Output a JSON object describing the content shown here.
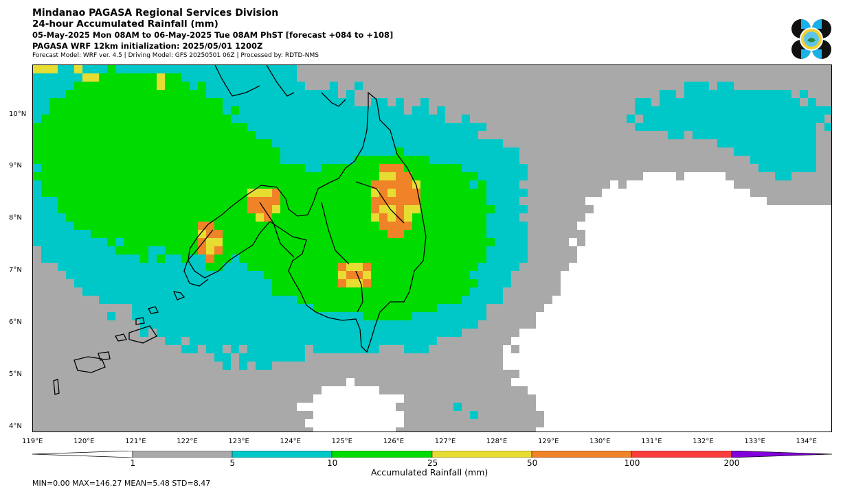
{
  "header": {
    "title": "Mindanao PAGASA Regional Services Division",
    "subtitle": "24-hour Accumulated Rainfall (mm)",
    "period": "05-May-2025 Mon 08AM to 06-May-2025 Tue 08AM PhST [forecast +084 to +108]",
    "model_init": "PAGASA WRF 12km initialization: 2025/05/01 1200Z",
    "model_info": "Forecast Model: WRF ver. 4.5 | Driving Model: GFS 20250501 06Z | Processed by: RDTD-NMS"
  },
  "map": {
    "lat_labels": [
      "10°N",
      "9°N",
      "8°N",
      "7°N",
      "6°N",
      "5°N",
      "4°N"
    ],
    "lon_labels": [
      "119°E",
      "120°E",
      "121°E",
      "122°E",
      "123°E",
      "124°E",
      "125°E",
      "126°E",
      "127°E",
      "128°E",
      "129°E",
      "130°E",
      "131°E",
      "132°E",
      "133°E",
      "134°E"
    ],
    "extent": {
      "lon_min": 119,
      "lon_max": 134.5,
      "lat_min": 3.9,
      "lat_max": 11.0
    }
  },
  "colorbar": {
    "label": "Accumulated Rainfall (mm)",
    "ticks": [
      "1",
      "5",
      "10",
      "25",
      "50",
      "100",
      "200"
    ],
    "colors": {
      "gray": "#a9a9a9",
      "cyan": "#00c8c8",
      "green": "#00dc00",
      "yellow": "#e6dc32",
      "orange": "#f08228",
      "red": "#fa3c3c",
      "purple": "#8200dc"
    }
  },
  "stats": "MIN=0.00   MAX=146.27   MEAN=5.48   STD=8.47"
}
